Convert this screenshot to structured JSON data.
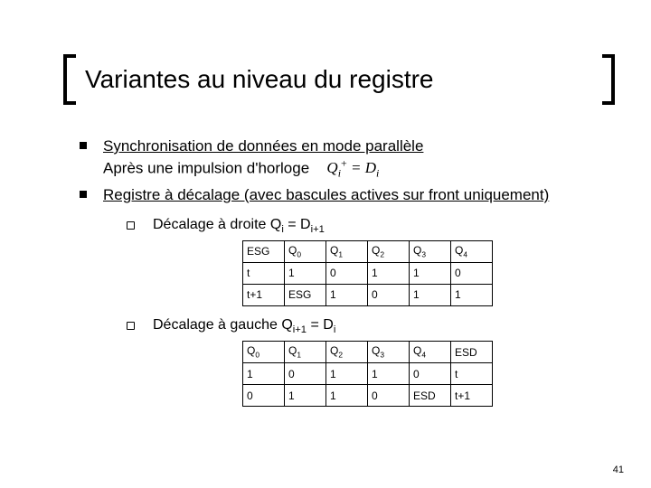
{
  "title": "Variantes au niveau du registre",
  "bullets": {
    "b1_underlined": "Synchronisation de données en mode parallèle",
    "b1_line2_prefix": "Après une impulsion d'horloge",
    "b1_formula_html": "Q<span class='sub'>i</span><span class='sup'>+</span> = D<span class='sub'>i</span>",
    "b2_underlined": "Registre à décalage (avec bascules actives sur front uniquement)"
  },
  "sub": {
    "s1_prefix": "Décalage à droite Q",
    "s1_sub1": "i",
    "s1_eqD": " = D",
    "s1_sub2": "i+1",
    "s2_prefix": "Décalage à gauche Q",
    "s2_sub1": "i+1",
    "s2_eqD": " = D",
    "s2_sub2": "i"
  },
  "table1": {
    "headers": [
      "ESG",
      "Q0",
      "Q1",
      "Q2",
      "Q3",
      "Q4"
    ],
    "rows": [
      [
        "t",
        "1",
        "0",
        "1",
        "1",
        "0"
      ],
      [
        "t+1",
        "ESG",
        "1",
        "0",
        "1",
        "1"
      ]
    ]
  },
  "table2": {
    "headers": [
      "Q0",
      "Q1",
      "Q2",
      "Q3",
      "Q4",
      "ESD"
    ],
    "rows": [
      [
        "1",
        "0",
        "1",
        "1",
        "0",
        "t"
      ],
      [
        "0",
        "1",
        "1",
        "0",
        "ESD",
        "t+1"
      ]
    ]
  },
  "page_number": "41",
  "colors": {
    "text": "#000000",
    "background": "#ffffff",
    "table_border": "#000000",
    "bullet_fill": "#000000"
  },
  "typography": {
    "title_fontsize": 28,
    "body_fontsize": 17,
    "sub_fontsize": 16,
    "table_fontsize": 12
  }
}
